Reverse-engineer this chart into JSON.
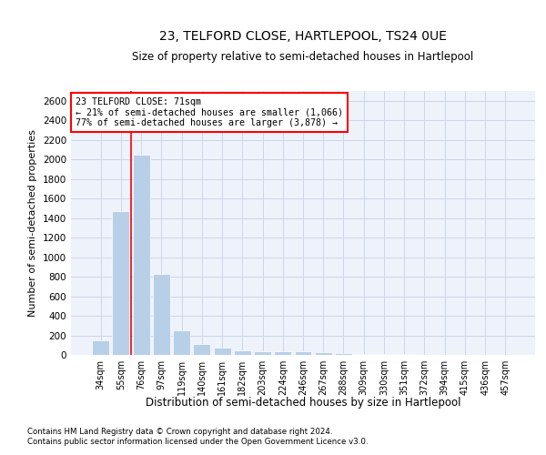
{
  "title": "23, TELFORD CLOSE, HARTLEPOOL, TS24 0UE",
  "subtitle": "Size of property relative to semi-detached houses in Hartlepool",
  "xlabel": "Distribution of semi-detached houses by size in Hartlepool",
  "ylabel": "Number of semi-detached properties",
  "categories": [
    "34sqm",
    "55sqm",
    "76sqm",
    "97sqm",
    "119sqm",
    "140sqm",
    "161sqm",
    "182sqm",
    "203sqm",
    "224sqm",
    "246sqm",
    "267sqm",
    "288sqm",
    "309sqm",
    "330sqm",
    "351sqm",
    "372sqm",
    "394sqm",
    "415sqm",
    "436sqm",
    "457sqm"
  ],
  "values": [
    150,
    1470,
    2050,
    830,
    255,
    110,
    70,
    45,
    35,
    35,
    35,
    30,
    20,
    10,
    5,
    5,
    3,
    2,
    1,
    1,
    0
  ],
  "bar_color": "#b8cfe8",
  "property_line_x": 1.5,
  "annotation_text_line1": "23 TELFORD CLOSE: 71sqm",
  "annotation_text_line2": "← 21% of semi-detached houses are smaller (1,066)",
  "annotation_text_line3": "77% of semi-detached houses are larger (3,878) →",
  "ylim": [
    0,
    2700
  ],
  "yticks": [
    0,
    200,
    400,
    600,
    800,
    1000,
    1200,
    1400,
    1600,
    1800,
    2000,
    2200,
    2400,
    2600
  ],
  "grid_color": "#ccd6e8",
  "bg_color": "#eef2fa",
  "footer_line1": "Contains HM Land Registry data © Crown copyright and database right 2024.",
  "footer_line2": "Contains public sector information licensed under the Open Government Licence v3.0."
}
